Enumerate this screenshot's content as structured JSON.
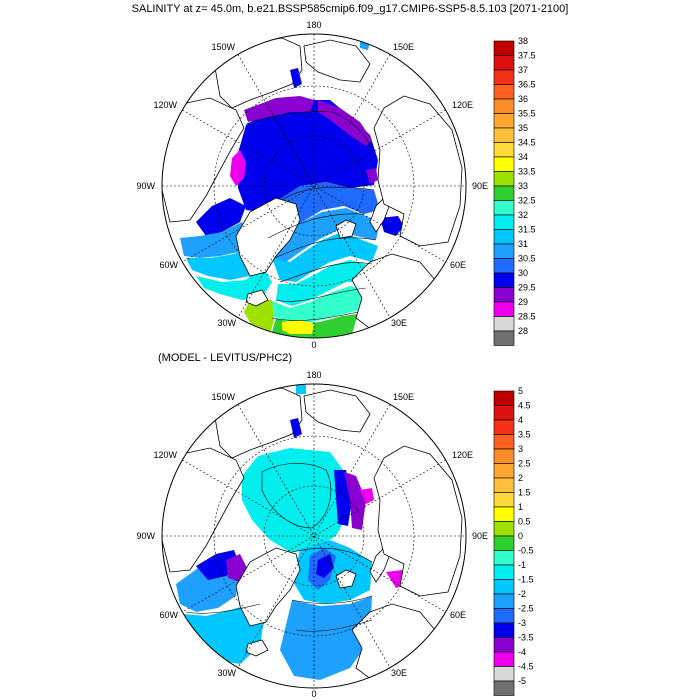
{
  "panel1": {
    "title": "SALINITY at z=  45.0m, b.e21.BSSP585cmip6.f09_g17.CMIP6-SSP5-8.5.103 [2071-2100]",
    "longitude_labels": [
      "180",
      "150E",
      "120E",
      "90E",
      "60E",
      "30E",
      "0",
      "30W",
      "60W",
      "90W",
      "120W",
      "150W"
    ],
    "colorbar": {
      "levels": [
        "38",
        "37.5",
        "37",
        "36.5",
        "36",
        "35.5",
        "35",
        "34.5",
        "34",
        "33.5",
        "33",
        "32.5",
        "32",
        "31.5",
        "31",
        "30.5",
        "30",
        "29.5",
        "29",
        "28.5",
        "28"
      ],
      "colors": [
        "#c00000",
        "#e01010",
        "#f53018",
        "#ff6020",
        "#ff8c2a",
        "#ffa632",
        "#ffbf3c",
        "#ffd83a",
        "#ffff00",
        "#9ee000",
        "#2fcf2f",
        "#33ffcc",
        "#00eeee",
        "#00c8ff",
        "#1ea0ff",
        "#1f6bff",
        "#0000ee",
        "#8a00d0",
        "#ee00ee",
        "#d8d8d8",
        "#707070"
      ]
    }
  },
  "panel2": {
    "title": "(MODEL - LEVITUS/PHC2)",
    "longitude_labels": [
      "180",
      "150E",
      "120E",
      "90E",
      "60E",
      "30E",
      "0",
      "30W",
      "60W",
      "90W",
      "120W",
      "150W"
    ],
    "colorbar": {
      "levels": [
        "5",
        "4.5",
        "4",
        "3.5",
        "3",
        "2.5",
        "2",
        "1.5",
        "1",
        "0.5",
        "0",
        "-0.5",
        "-1",
        "-1.5",
        "-2",
        "-2.5",
        "-3",
        "-3.5",
        "-4",
        "-4.5",
        "-5"
      ],
      "colors": [
        "#c00000",
        "#e01010",
        "#f53018",
        "#ff6020",
        "#ff8c2a",
        "#ffa632",
        "#ffbf3c",
        "#ffd83a",
        "#ffff00",
        "#9ee000",
        "#2fcf2f",
        "#33ffcc",
        "#00eeee",
        "#00c8ff",
        "#1ea0ff",
        "#1f6bff",
        "#0000ee",
        "#8a00d0",
        "#ee00ee",
        "#d8d8d8",
        "#707070"
      ]
    }
  }
}
